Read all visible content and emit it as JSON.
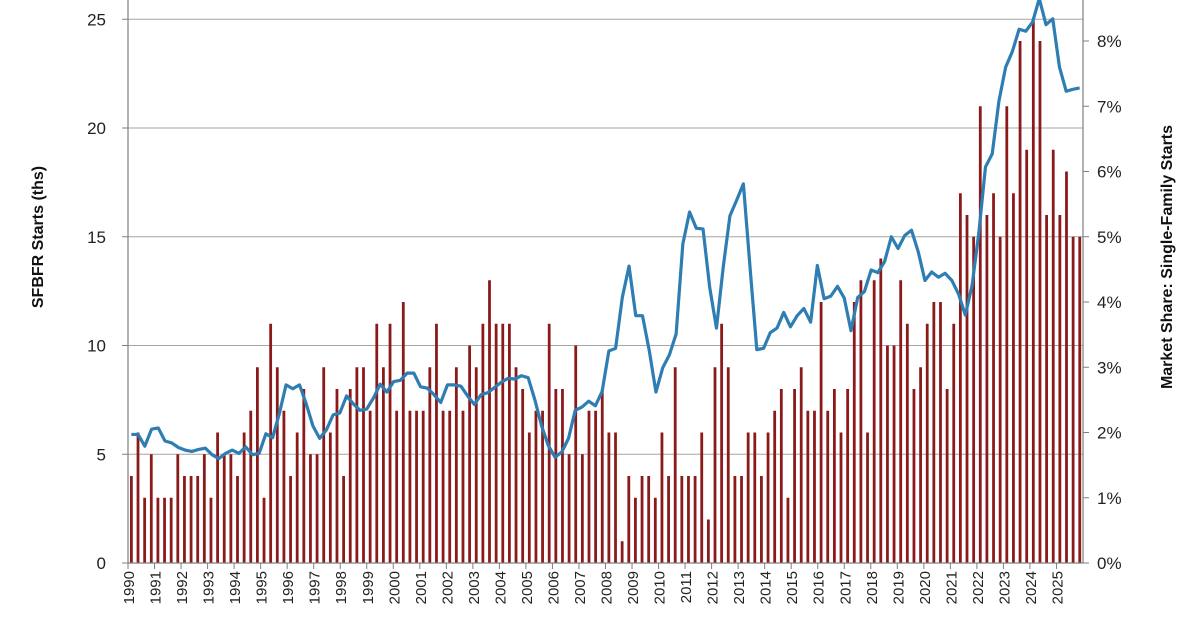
{
  "chart_data": {
    "type": "bar",
    "ylabel": "SFBFR Starts (ths)",
    "y2label": "Market Share: Single-Family Starts",
    "ylim": [
      0,
      25.5
    ],
    "y2lim": [
      0,
      8.5
    ],
    "yticks": [
      "0",
      "5",
      "10",
      "15",
      "20",
      "25"
    ],
    "y2ticks": [
      "0%",
      "1%",
      "2%",
      "3%",
      "4%",
      "5%",
      "6%",
      "7%",
      "8%"
    ],
    "year_labels": [
      "1990",
      "1991",
      "1992",
      "1993",
      "1994",
      "1995",
      "1996",
      "1997",
      "1998",
      "1999",
      "2000",
      "2001",
      "2002",
      "2003",
      "2004",
      "2005",
      "2006",
      "2007",
      "2008",
      "2009",
      "2010",
      "2011",
      "2012",
      "2013",
      "2014",
      "2015",
      "2016",
      "2017",
      "2018",
      "2019",
      "2020",
      "2021",
      "2022",
      "2023",
      "2024",
      "2025"
    ],
    "grid": true,
    "colors": {
      "bars": "#8b1a1a",
      "line": "#2e7db3",
      "grid": "#a6a6a6"
    },
    "series": [
      {
        "type": "bar",
        "axis": "left",
        "values": [
          4,
          6,
          3,
          5,
          3,
          3,
          3,
          5,
          4,
          4,
          4,
          5,
          3,
          6,
          5,
          5,
          4,
          6,
          7,
          9,
          3,
          11,
          9,
          7,
          4,
          6,
          8,
          5,
          5,
          9,
          6,
          8,
          4,
          8,
          9,
          9,
          7,
          11,
          9,
          11,
          7,
          12,
          7,
          7,
          7,
          9,
          11,
          7,
          7,
          9,
          7,
          10,
          9,
          11,
          13,
          11,
          11,
          11,
          9,
          8,
          6,
          7,
          7,
          11,
          8,
          8,
          5,
          10,
          5,
          7,
          7,
          8,
          6,
          6,
          1,
          4,
          3,
          4,
          4,
          3,
          6,
          4,
          9,
          4,
          4,
          4,
          6,
          2,
          9,
          11,
          9,
          4,
          4,
          6,
          6,
          4,
          6,
          7,
          8,
          3,
          8,
          9,
          7,
          7,
          12,
          7,
          8,
          6,
          8,
          12,
          13,
          6,
          13,
          14,
          10,
          10,
          13,
          11,
          8,
          9,
          11,
          12,
          12,
          8,
          11,
          17,
          16,
          15,
          21,
          16,
          17,
          15,
          21,
          17,
          24,
          19,
          25,
          24,
          16,
          19,
          16,
          18,
          15,
          15
        ]
      },
      {
        "type": "line",
        "axis": "right",
        "values": [
          1.97,
          1.97,
          1.79,
          2.05,
          2.07,
          1.87,
          1.84,
          1.77,
          1.73,
          1.71,
          1.74,
          1.76,
          1.66,
          1.6,
          1.68,
          1.73,
          1.68,
          1.78,
          1.66,
          1.68,
          1.98,
          1.92,
          2.29,
          2.73,
          2.67,
          2.73,
          2.44,
          2.1,
          1.91,
          2.04,
          2.27,
          2.3,
          2.56,
          2.44,
          2.34,
          2.36,
          2.53,
          2.74,
          2.62,
          2.78,
          2.8,
          2.91,
          2.91,
          2.7,
          2.68,
          2.58,
          2.46,
          2.73,
          2.73,
          2.71,
          2.56,
          2.43,
          2.58,
          2.61,
          2.69,
          2.77,
          2.83,
          2.82,
          2.87,
          2.84,
          2.5,
          2.1,
          1.8,
          1.62,
          1.7,
          1.91,
          2.34,
          2.39,
          2.48,
          2.41,
          2.63,
          3.25,
          3.29,
          4.07,
          4.55,
          3.79,
          3.79,
          3.26,
          2.62,
          2.99,
          3.19,
          3.51,
          4.89,
          5.38,
          5.13,
          5.12,
          4.22,
          3.6,
          4.53,
          5.32,
          5.56,
          5.81,
          4.52,
          3.27,
          3.29,
          3.53,
          3.6,
          3.84,
          3.62,
          3.79,
          3.9,
          3.69,
          4.56,
          4.05,
          4.09,
          4.24,
          4.06,
          3.56,
          4.07,
          4.16,
          4.49,
          4.45,
          4.62,
          5.0,
          4.82,
          5.02,
          5.1,
          4.77,
          4.33,
          4.46,
          4.38,
          4.44,
          4.33,
          4.12,
          3.8,
          4.25,
          5.05,
          6.07,
          6.27,
          7.08,
          7.6,
          7.84,
          8.18,
          8.15,
          8.29,
          8.65,
          8.25,
          8.34,
          7.6,
          7.23,
          7.26,
          7.28
        ]
      }
    ]
  }
}
